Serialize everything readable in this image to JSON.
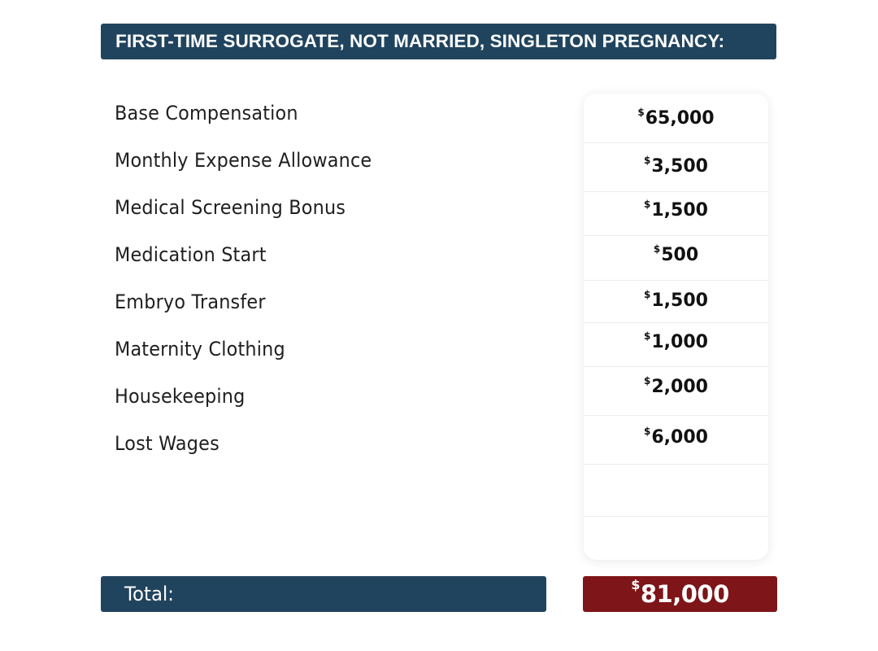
{
  "header": {
    "title": "FIRST-TIME SURROGATE, NOT MARRIED, SINGLETON PREGNANCY:"
  },
  "currency_symbol": "$",
  "items": [
    {
      "label": "Base Compensation",
      "amount": "65,000"
    },
    {
      "label": "Monthly Expense Allowance",
      "amount": "3,500"
    },
    {
      "label": "Medical Screening Bonus",
      "amount": "1,500"
    },
    {
      "label": "Medication Start",
      "amount": "500"
    },
    {
      "label": "Embryo Transfer",
      "amount": "1,500"
    },
    {
      "label": "Maternity Clothing",
      "amount": "1,000"
    },
    {
      "label": "Housekeeping",
      "amount": "2,000"
    },
    {
      "label": "Lost Wages",
      "amount": "6,000"
    }
  ],
  "total": {
    "label": "Total:",
    "amount": "81,000"
  },
  "colors": {
    "header": "#21445e",
    "total_value": "#7e1518"
  }
}
